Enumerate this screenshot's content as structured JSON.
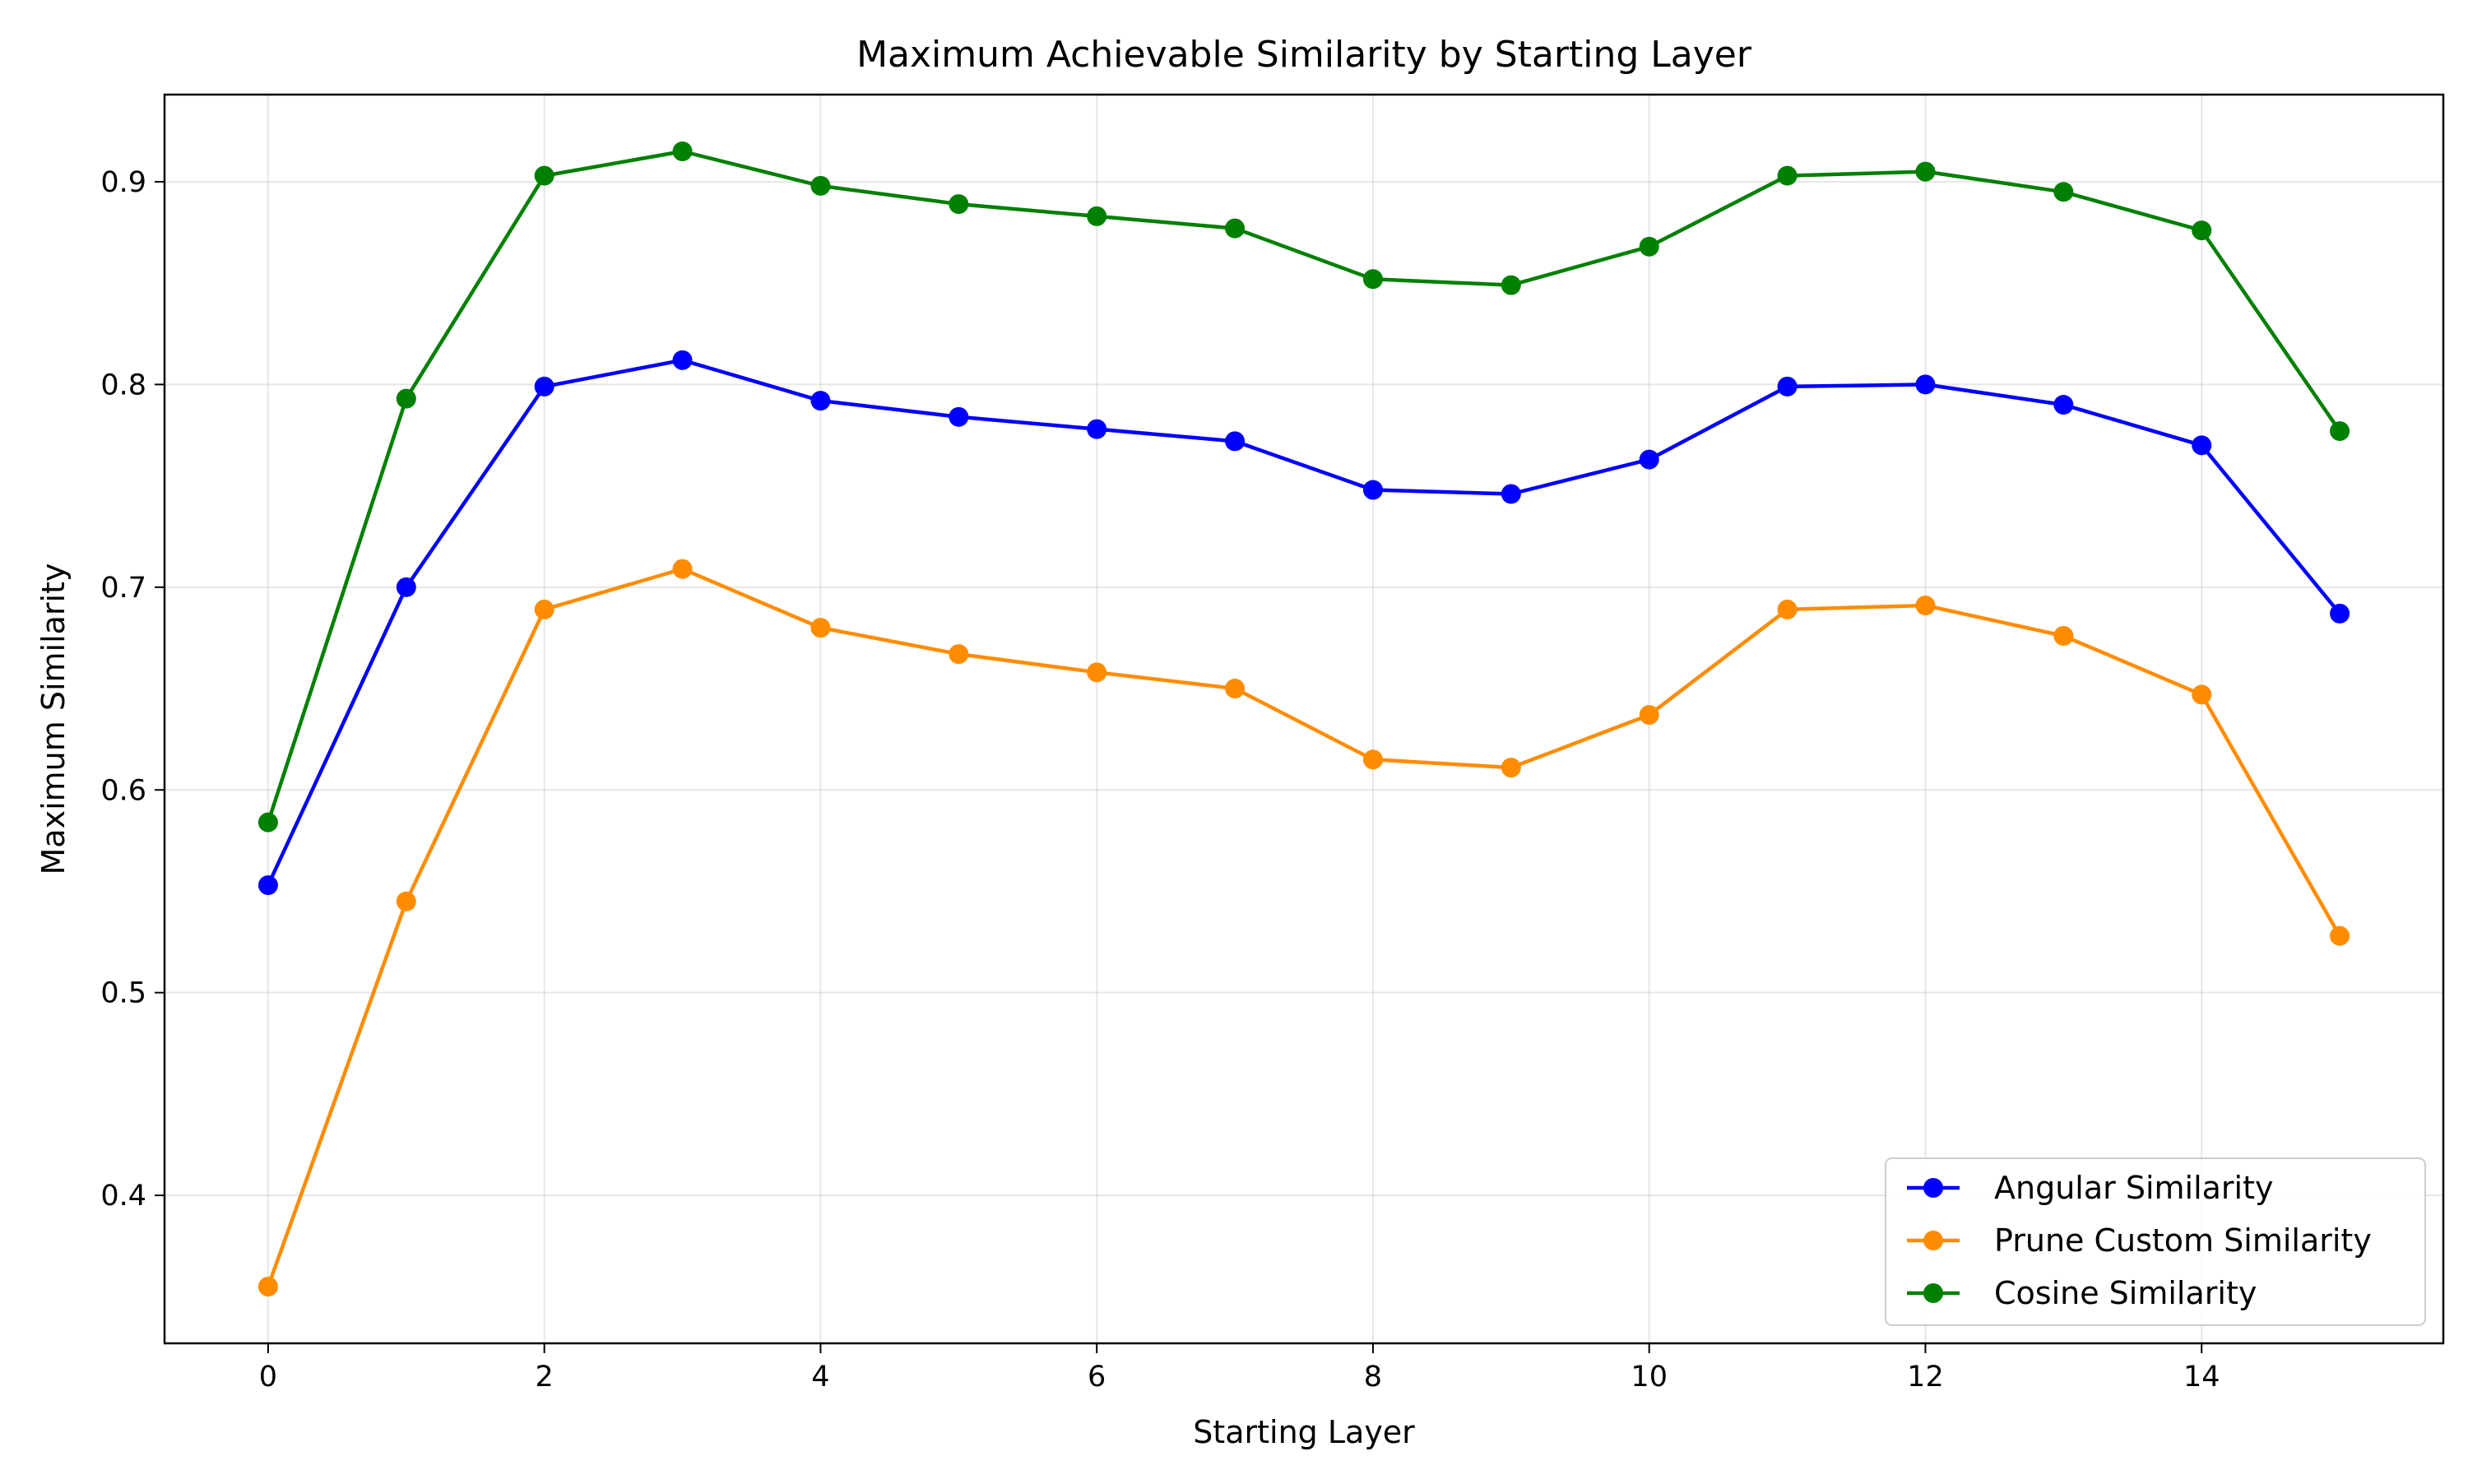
{
  "chart_data": {
    "type": "line",
    "title": "Maximum Achievable Similarity by Starting Layer",
    "xlabel": "Starting Layer",
    "ylabel": "Maximum Similarity",
    "xlim": [
      -0.75,
      15.75
    ],
    "ylim": [
      0.327,
      0.943
    ],
    "x_ticks": [
      0,
      2,
      4,
      6,
      8,
      10,
      12,
      14
    ],
    "x_tick_labels": [
      "0",
      "2",
      "4",
      "6",
      "8",
      "10",
      "12",
      "14"
    ],
    "y_ticks": [
      0.4,
      0.5,
      0.6,
      0.7,
      0.8,
      0.9
    ],
    "y_tick_labels": [
      "0.4",
      "0.5",
      "0.6",
      "0.7",
      "0.8",
      "0.9"
    ],
    "grid": true,
    "legend_position": "lower-right",
    "x": [
      0,
      1,
      2,
      3,
      4,
      5,
      6,
      7,
      8,
      9,
      10,
      11,
      12,
      13,
      14,
      15
    ],
    "series": [
      {
        "name": "Angular Similarity",
        "color": "#0000ff",
        "marker": "circle",
        "values": [
          0.553,
          0.7,
          0.799,
          0.812,
          0.792,
          0.784,
          0.778,
          0.772,
          0.748,
          0.746,
          0.763,
          0.799,
          0.8,
          0.79,
          0.77,
          0.687
        ]
      },
      {
        "name": "Prune Custom Similarity",
        "color": "#ff8c00",
        "marker": "circle",
        "values": [
          0.355,
          0.545,
          0.689,
          0.709,
          0.68,
          0.667,
          0.658,
          0.65,
          0.615,
          0.611,
          0.637,
          0.689,
          0.691,
          0.676,
          0.647,
          0.528
        ]
      },
      {
        "name": "Cosine Similarity",
        "color": "#008000",
        "marker": "circle",
        "values": [
          0.584,
          0.793,
          0.903,
          0.915,
          0.898,
          0.889,
          0.883,
          0.877,
          0.852,
          0.849,
          0.868,
          0.903,
          0.905,
          0.895,
          0.876,
          0.777
        ]
      }
    ]
  }
}
